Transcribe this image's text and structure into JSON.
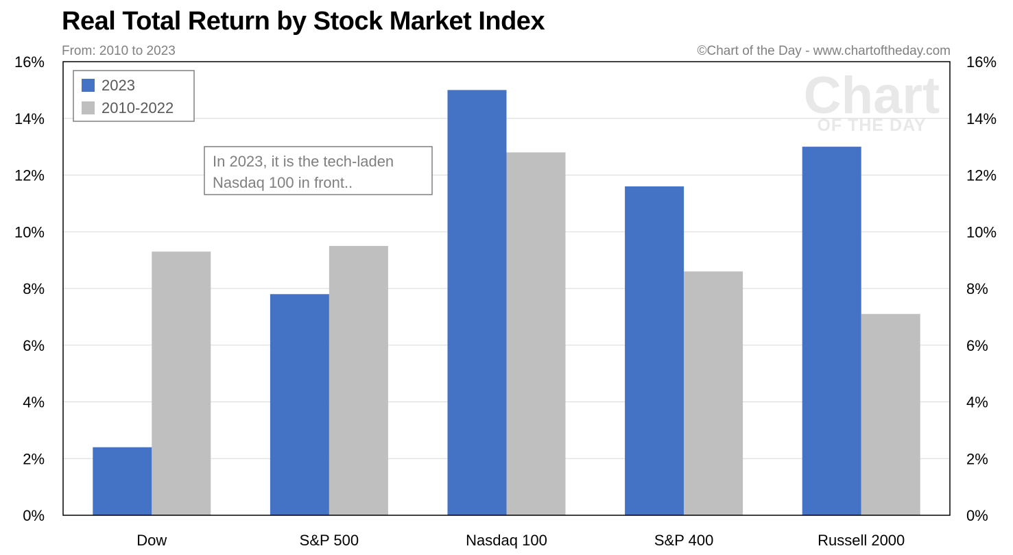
{
  "chart_data": {
    "type": "bar",
    "title": "Real Total Return by Stock Market Index",
    "subtitle": "From: 2010 to 2023",
    "credit": "©Chart of the Day - www.chartoftheday.com",
    "watermark": [
      "Chart",
      "OF THE DAY"
    ],
    "categories": [
      "Dow",
      "S&P 500",
      "Nasdaq 100",
      "S&P 400",
      "Russell 2000"
    ],
    "series": [
      {
        "name": "2023",
        "color": "#4472c4",
        "values": [
          2.4,
          7.8,
          15.0,
          11.6,
          13.0
        ]
      },
      {
        "name": "2010-2022",
        "color": "#bfbfbf",
        "values": [
          9.3,
          9.5,
          12.8,
          8.6,
          7.1
        ]
      }
    ],
    "ylim": [
      0,
      16
    ],
    "ytick_step": 2,
    "ytick_format": "%",
    "ytick_labels": [
      "0%",
      "2%",
      "4%",
      "6%",
      "8%",
      "10%",
      "12%",
      "14%",
      "16%"
    ],
    "grid": true,
    "legend_position": "top-left",
    "annotation": [
      "In 2023, it is the tech-laden",
      "Nasdaq 100 in front.."
    ]
  }
}
